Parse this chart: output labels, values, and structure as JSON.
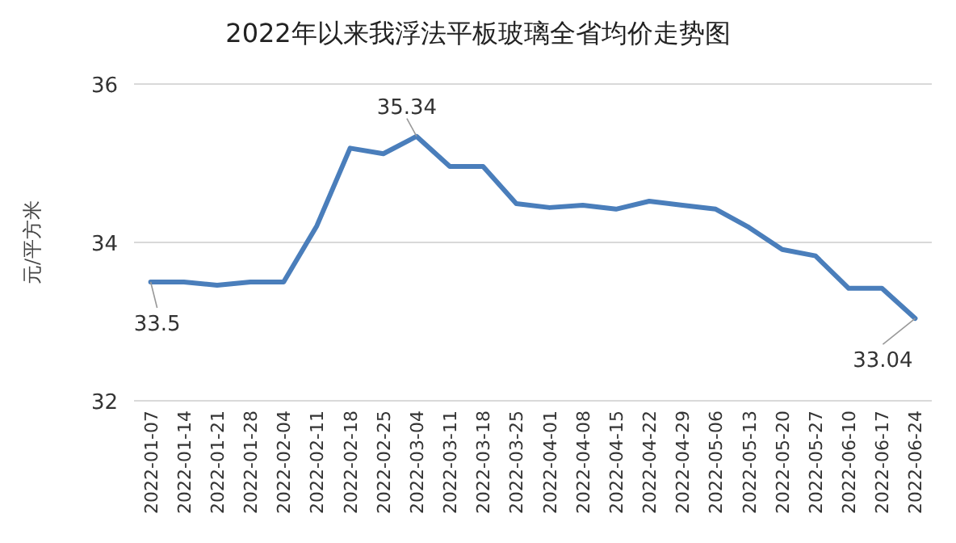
{
  "chart_data": {
    "type": "line",
    "title": "2022年以来我浮法平板玻璃全省均价走势图",
    "ylabel": "元/平方米",
    "categories": [
      "2022-01-07",
      "2022-01-14",
      "2022-01-21",
      "2022-01-28",
      "2022-02-04",
      "2022-02-11",
      "2022-02-18",
      "2022-02-25",
      "2022-03-04",
      "2022-03-11",
      "2022-03-18",
      "2022-03-25",
      "2022-04-01",
      "2022-04-08",
      "2022-04-15",
      "2022-04-22",
      "2022-04-29",
      "2022-05-06",
      "2022-05-13",
      "2022-05-20",
      "2022-05-27",
      "2022-06-10",
      "2022-06-17",
      "2022-06-24"
    ],
    "series": [
      {
        "color": "#4a7ebb",
        "values": [
          33.5,
          33.5,
          33.46,
          33.5,
          33.5,
          34.21,
          35.19,
          35.12,
          35.34,
          34.96,
          34.96,
          34.49,
          34.44,
          34.47,
          34.42,
          34.52,
          34.47,
          34.42,
          34.19,
          33.91,
          33.83,
          33.42,
          33.42,
          33.04
        ],
        "value_labels": [
          "33.5",
          null,
          null,
          null,
          null,
          null,
          null,
          null,
          "35.34",
          null,
          null,
          null,
          null,
          null,
          null,
          null,
          null,
          null,
          null,
          null,
          null,
          null,
          null,
          "33.04"
        ]
      }
    ],
    "ylim": [
      32,
      36
    ],
    "yticks": [
      32,
      34,
      36
    ],
    "grid": "y",
    "marker": "none",
    "line_style": "solid"
  }
}
